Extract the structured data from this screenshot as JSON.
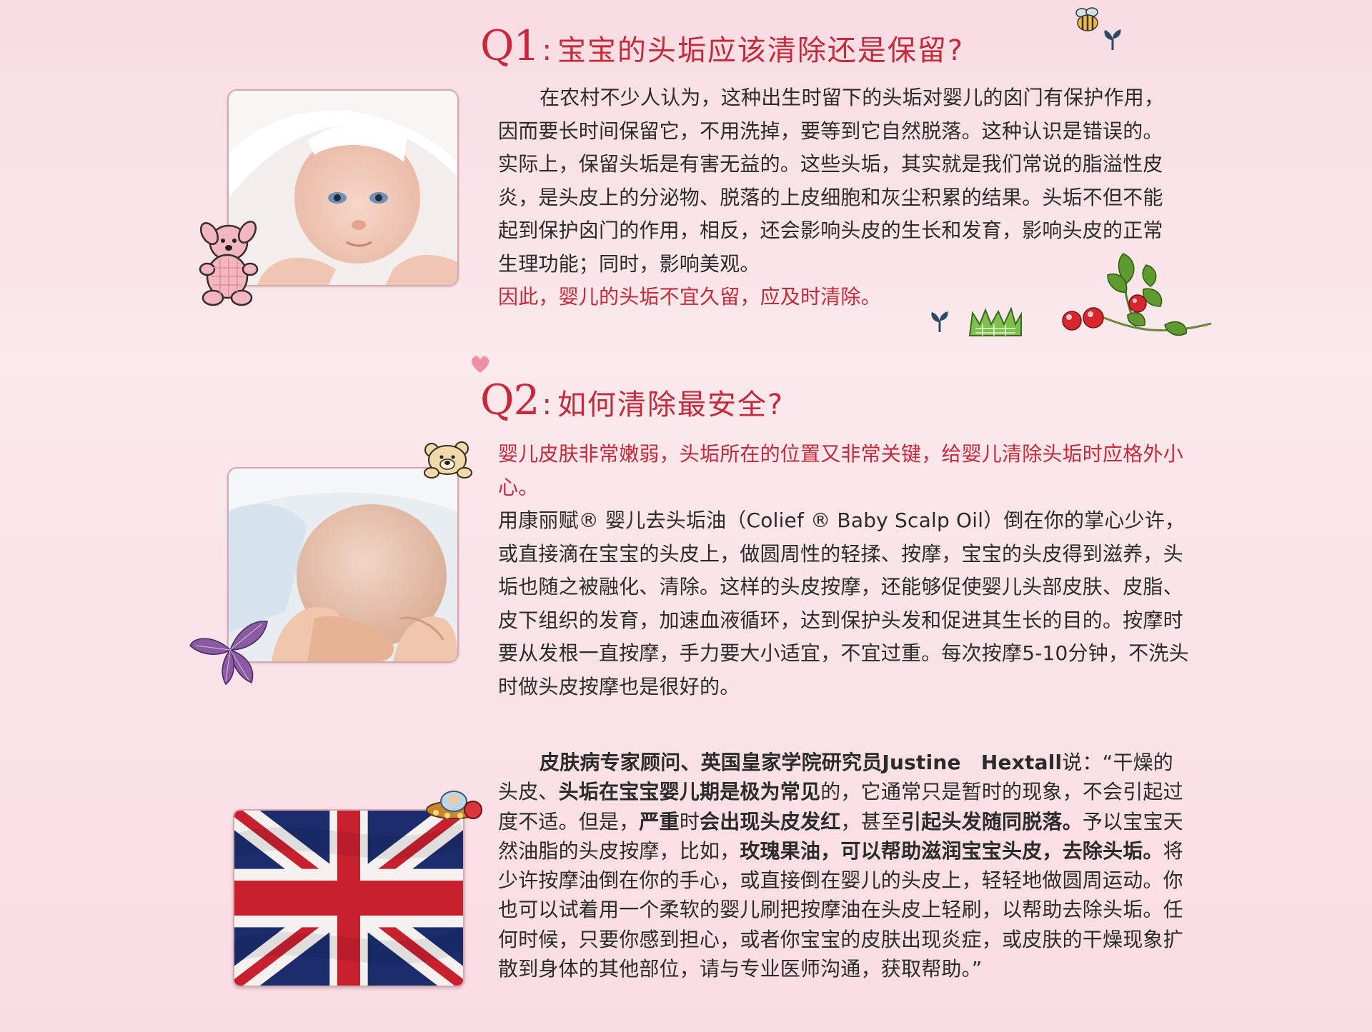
{
  "q1": {
    "num": "Q1",
    "colon": ":",
    "title": "宝宝的头垢应该清除还是保留?",
    "paragraph": "在农村不少人认为，这种出生时留下的头垢对婴儿的囟门有保护作用，因而要长时间保留它，不用洗掉，要等到它自然脱落。这种认识是错误的。实际上，保留头垢是有害无益的。这些头垢，其实就是我们常说的脂溢性皮炎，是头皮上的分泌物、脱落的上皮细胞和灰尘积累的结果。头垢不但不能起到保护囟门的作用，相反，还会影响头皮的生长和发育，影响头皮的正常生理功能；同时，影响美观。",
    "conclusion": "因此，婴儿的头垢不宜久留，应及时清除。"
  },
  "q2": {
    "num": "Q2",
    "colon": ":",
    "title": "如何清除最安全?",
    "warning": "婴儿皮肤非常嫩弱，头垢所在的位置又非常关键，给婴儿清除头垢时应格外小心。",
    "paragraph": "用康丽赋® 婴儿去头垢油（Colief ® Baby Scalp Oil）倒在你的掌心少许，或直接滴在宝宝的头皮上，做圆周性的轻揉、按摩，宝宝的头皮得到滋养，头垢也随之被融化、清除。这样的头皮按摩，还能够促使婴儿头部皮肤、皮脂、皮下组织的发育，加速血液循环，达到保护头发和促进其生长的目的。按摩时要从发根一直按摩，手力要大小适宜，不宜过重。每次按摩5-10分钟，不洗头时做头皮按摩也是很好的。"
  },
  "q3": {
    "s1_bold": "皮肤病专家顾问、英国皇家学院研究员Justine　Hextall",
    "s2": "说：“干燥的头皮、",
    "s3_bold": "头垢在宝宝婴儿期是极为常见",
    "s4": "的，它通常只是暂时的现象，不会引起过度不适。但是，",
    "s5_bold": "严重",
    "s6": "时",
    "s7_bold": "会出现头皮发红",
    "s8": "，甚至",
    "s9_bold": "引起头发随同脱落。",
    "s10": "予以宝宝天然油脂的头皮按摩，比如，",
    "s11_bold": "玫瑰果油，可以帮助滋润宝宝头皮，去除头垢。",
    "s12": "将少许按摩油倒在你的手心，或直接倒在婴儿的头皮上，轻轻地做圆周运动。你也可以试着用一个柔软的婴儿刷把按摩油在头皮上轻刷，以帮助去除头垢。任何时候，只要你感到担心，或者你宝宝的皮肤出现炎症，或皮肤的干燥现象扩散到身体的其他部位，请与专业医师沟通，获取帮助。”"
  },
  "colors": {
    "accent_red": "#c8283a",
    "text": "#2b2b2b",
    "background": "#f9e1e6"
  },
  "icons": [
    "bee-icon",
    "sprout-icon",
    "teddy-dog-icon",
    "grass-icon",
    "rosehip-branch-icon",
    "heart-icon",
    "teddy-bear-icon",
    "purple-leaf-icon",
    "ufo-toy-icon"
  ]
}
